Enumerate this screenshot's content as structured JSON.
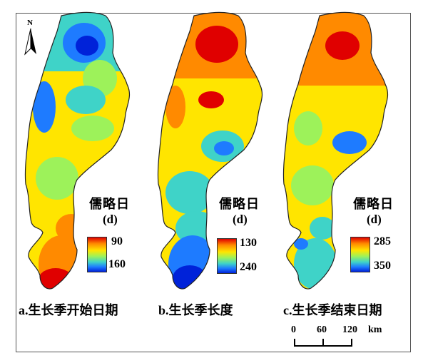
{
  "north_letter": "N",
  "panels": [
    {
      "id": "a",
      "caption": "a.生长季开始日期",
      "legend_title": "儒略日",
      "legend_unit": "(d)",
      "legend_high": "90",
      "legend_low": "160"
    },
    {
      "id": "b",
      "caption": "b.生长季长度",
      "legend_title": "儒略日",
      "legend_unit": "(d)",
      "legend_high": "130",
      "legend_low": "240"
    },
    {
      "id": "c",
      "caption": "c.生长季结束日期",
      "legend_title": "儒略日",
      "legend_unit": "(d)",
      "legend_high": "285",
      "legend_low": "350"
    }
  ],
  "scale_bar": {
    "labels": [
      "0",
      "60",
      "120"
    ],
    "unit": "km"
  },
  "colors": {
    "red": "#e00000",
    "orange": "#ff8a00",
    "yellow": "#ffe500",
    "green": "#9df25a",
    "cyan": "#3fd3c8",
    "blue": "#1e7bff",
    "dark_blue": "#0022d9"
  }
}
